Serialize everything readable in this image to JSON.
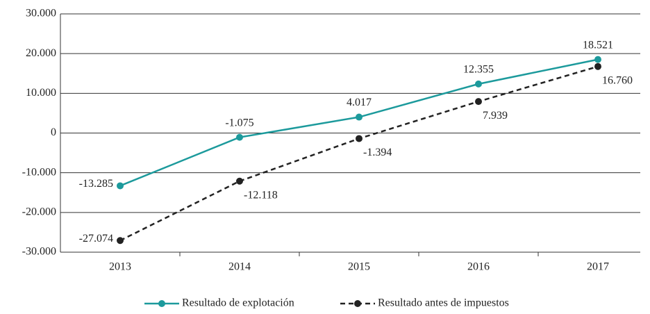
{
  "chart_data": {
    "type": "line",
    "categories": [
      "2013",
      "2014",
      "2015",
      "2016",
      "2017"
    ],
    "series": [
      {
        "name": "Resultado de explotación",
        "color": "#1c9a9c",
        "line_style": "solid",
        "values": [
          -13285,
          -1075,
          4017,
          12355,
          18521
        ],
        "value_labels": [
          "-13.285",
          "-1.075",
          "4.017",
          "12.355",
          "18.521"
        ]
      },
      {
        "name": "Resultado antes de impuestos",
        "color": "#222222",
        "line_style": "dashed",
        "values": [
          -27074,
          -12118,
          -1394,
          7939,
          16760
        ],
        "value_labels": [
          "-27.074",
          "-12.118",
          "-1.394",
          "7.939",
          "16.760"
        ]
      }
    ],
    "ylim": [
      -30000,
      30000
    ],
    "yticks": [
      {
        "value": -30000,
        "label": "-30.000"
      },
      {
        "value": -20000,
        "label": "-20.000"
      },
      {
        "value": -10000,
        "label": "-10.000"
      },
      0,
      {
        "value": 10000,
        "label": "10.000"
      },
      {
        "value": 20000,
        "label": "20.000"
      },
      {
        "value": 30000,
        "label": "30.000"
      }
    ],
    "grid": true,
    "legend": "bottom"
  }
}
